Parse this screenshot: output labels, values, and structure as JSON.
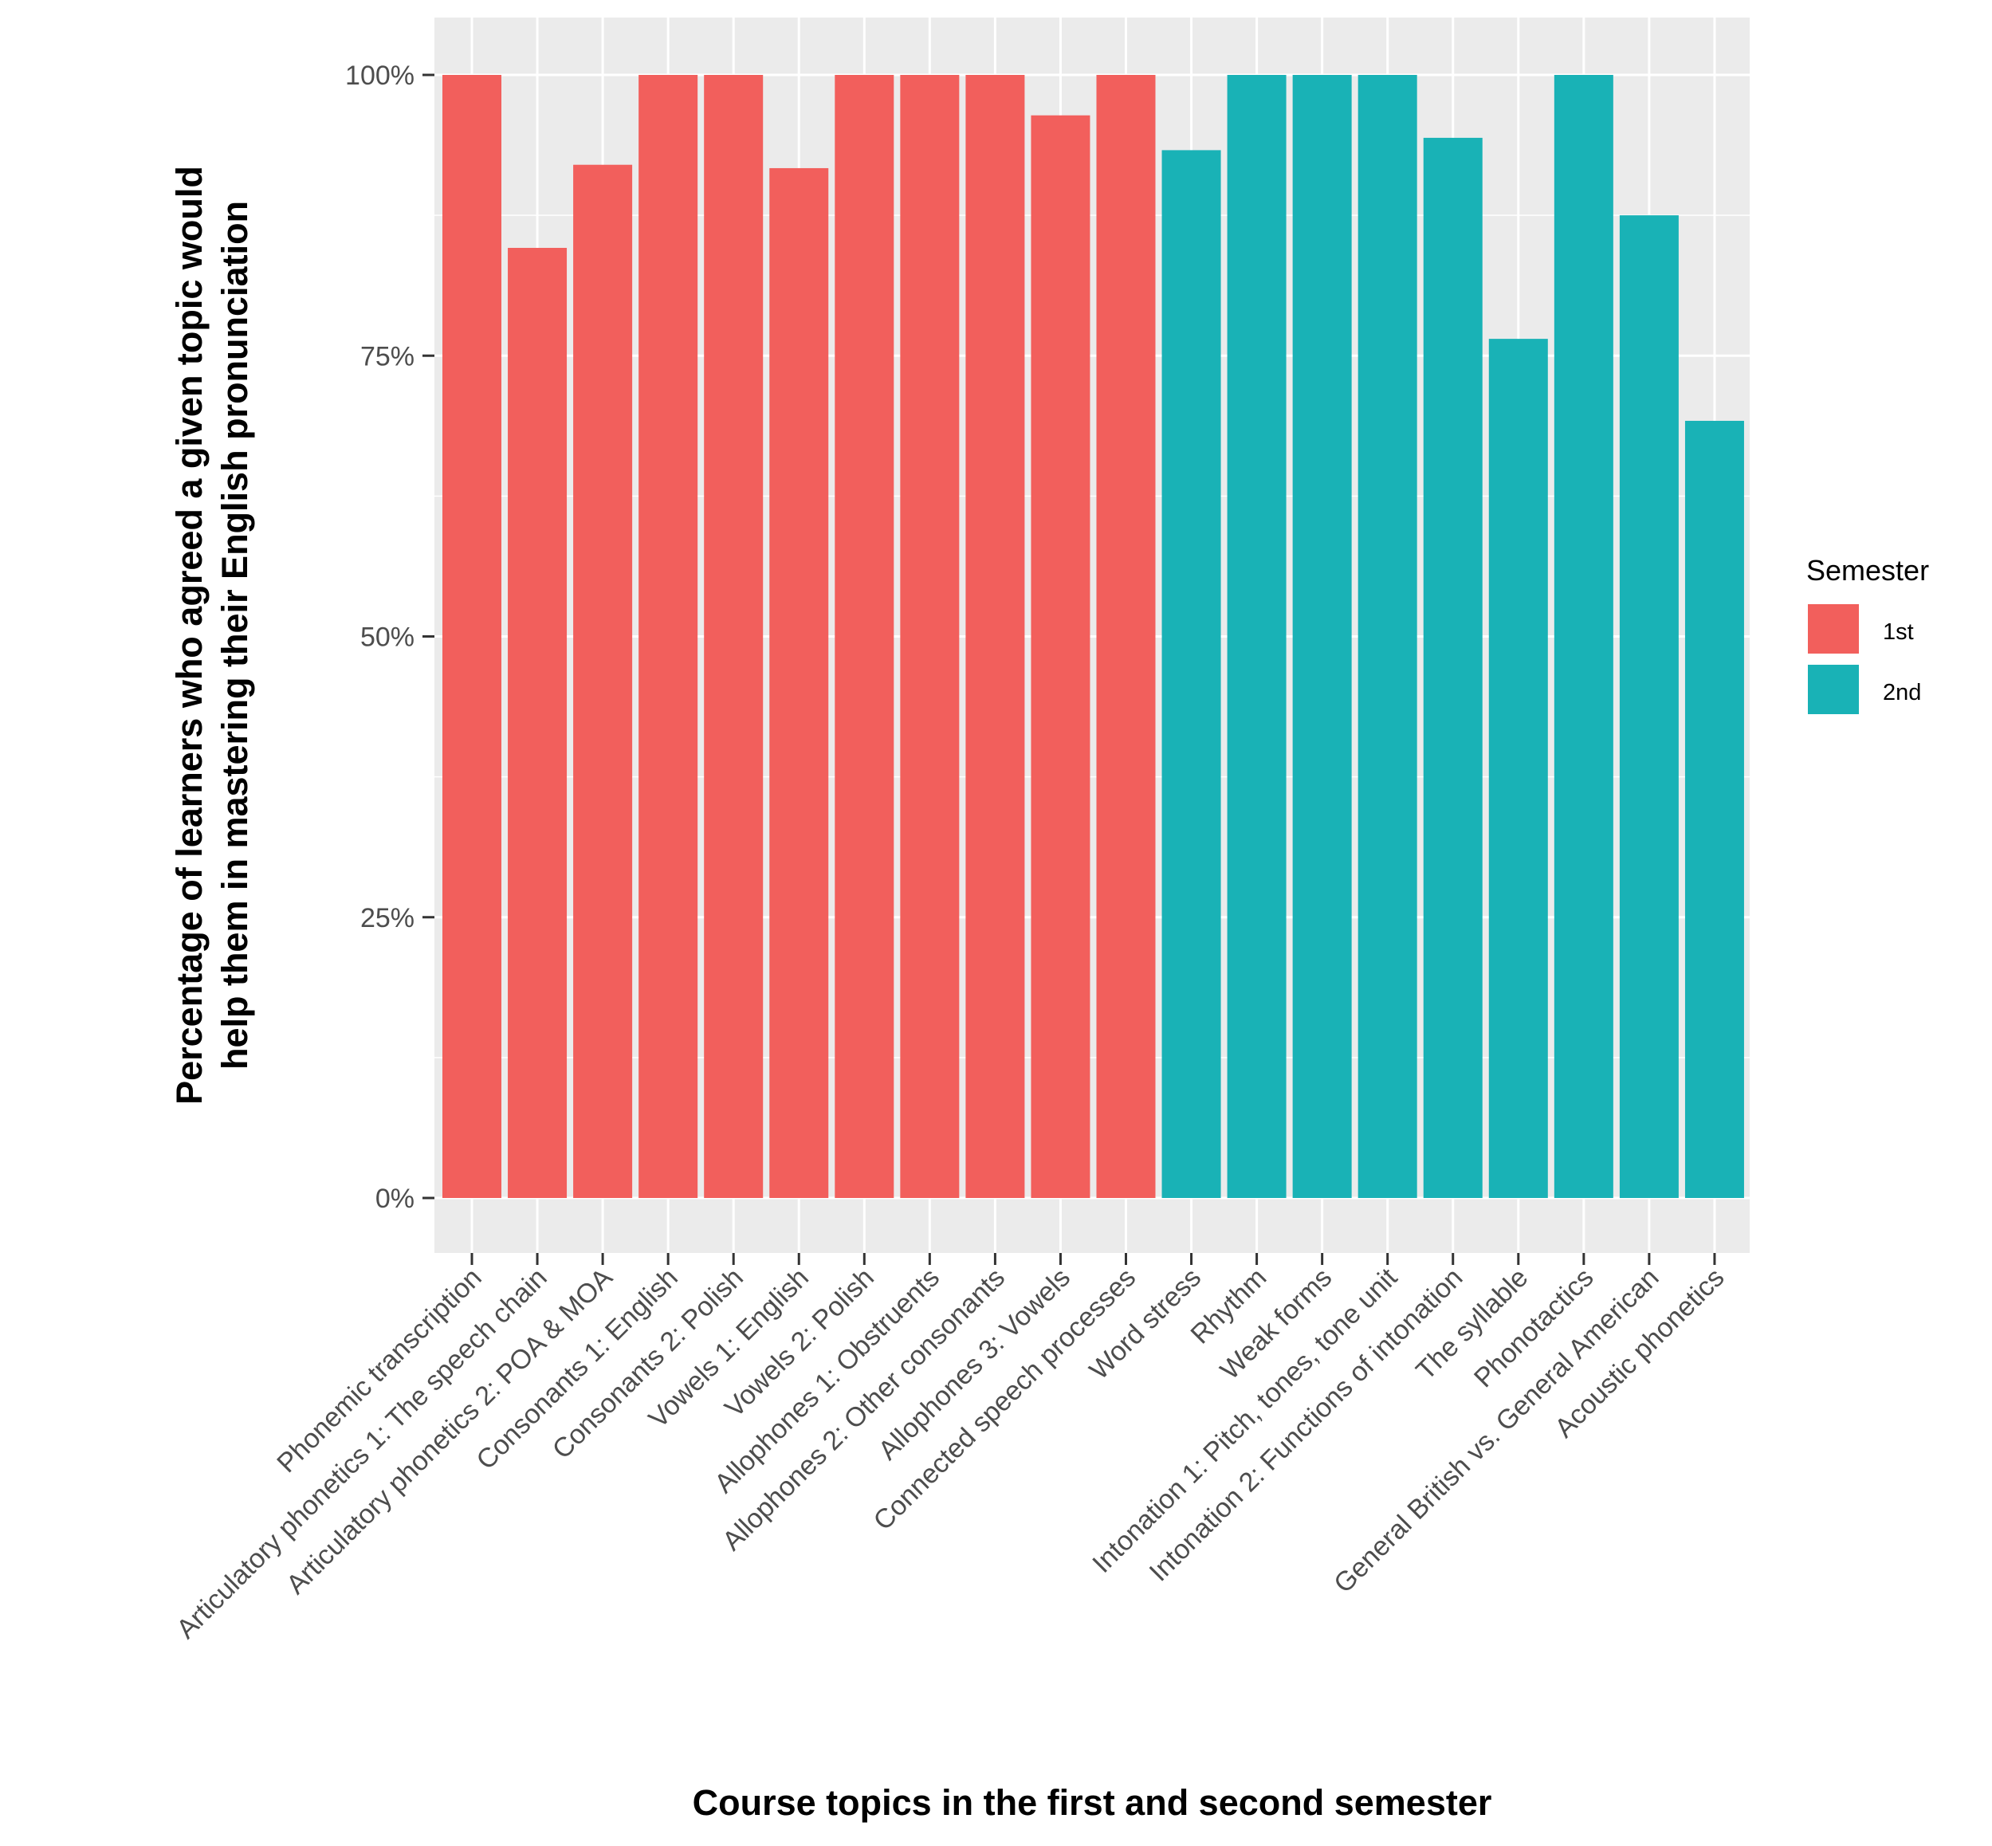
{
  "chart_data": {
    "type": "bar",
    "xlabel": "Course topics in the first and second semester",
    "ylabel_lines": [
      "Percentage of learners who agreed a given topic would",
      "help them in mastering their English pronunciation"
    ],
    "ylim": [
      0,
      1
    ],
    "yticks": [
      0,
      0.25,
      0.5,
      0.75,
      1.0
    ],
    "ytick_labels": [
      "0%",
      "25%",
      "50%",
      "75%",
      "100%"
    ],
    "grid": true,
    "legend": {
      "title": "Semester",
      "placement": "right",
      "entries": [
        {
          "label": "1st",
          "color": "#F8766D"
        },
        {
          "label": "2nd",
          "color": "#00BFC4"
        }
      ]
    },
    "colors": {
      "1st": "#F25F5C",
      "2nd": "#19B2B6",
      "panel": "#EBEBEB",
      "grid": "#FFFFFF"
    },
    "categories": [
      "Phonemic transcription",
      "Articulatory phonetics 1: The speech chain",
      "Articulatory phonetics 2: POA & MOA",
      "Consonants 1: English",
      "Consonants 2: Polish",
      "Vowels 1: English",
      "Vowels 2: Polish",
      "Allophones 1: Obstruents",
      "Allophones 2: Other consonants",
      "Allophones 3: Vowels",
      "Connected speech processes",
      "Word stress",
      "Rhythm",
      "Weak forms",
      "Intonation 1: Pitch, tones, tone unit",
      "Intonation 2: Functions of intonation",
      "The syllable",
      "Phonotactics",
      "General British vs. General American",
      "Acoustic phonetics"
    ],
    "semester": [
      "1st",
      "1st",
      "1st",
      "1st",
      "1st",
      "1st",
      "1st",
      "1st",
      "1st",
      "1st",
      "1st",
      "2nd",
      "2nd",
      "2nd",
      "2nd",
      "2nd",
      "2nd",
      "2nd",
      "2nd",
      "2nd"
    ],
    "values": [
      1.0,
      0.846,
      0.92,
      1.0,
      1.0,
      0.917,
      1.0,
      1.0,
      1.0,
      0.964,
      1.0,
      0.933,
      1.0,
      1.0,
      1.0,
      0.944,
      0.765,
      1.0,
      0.875,
      0.692
    ]
  }
}
